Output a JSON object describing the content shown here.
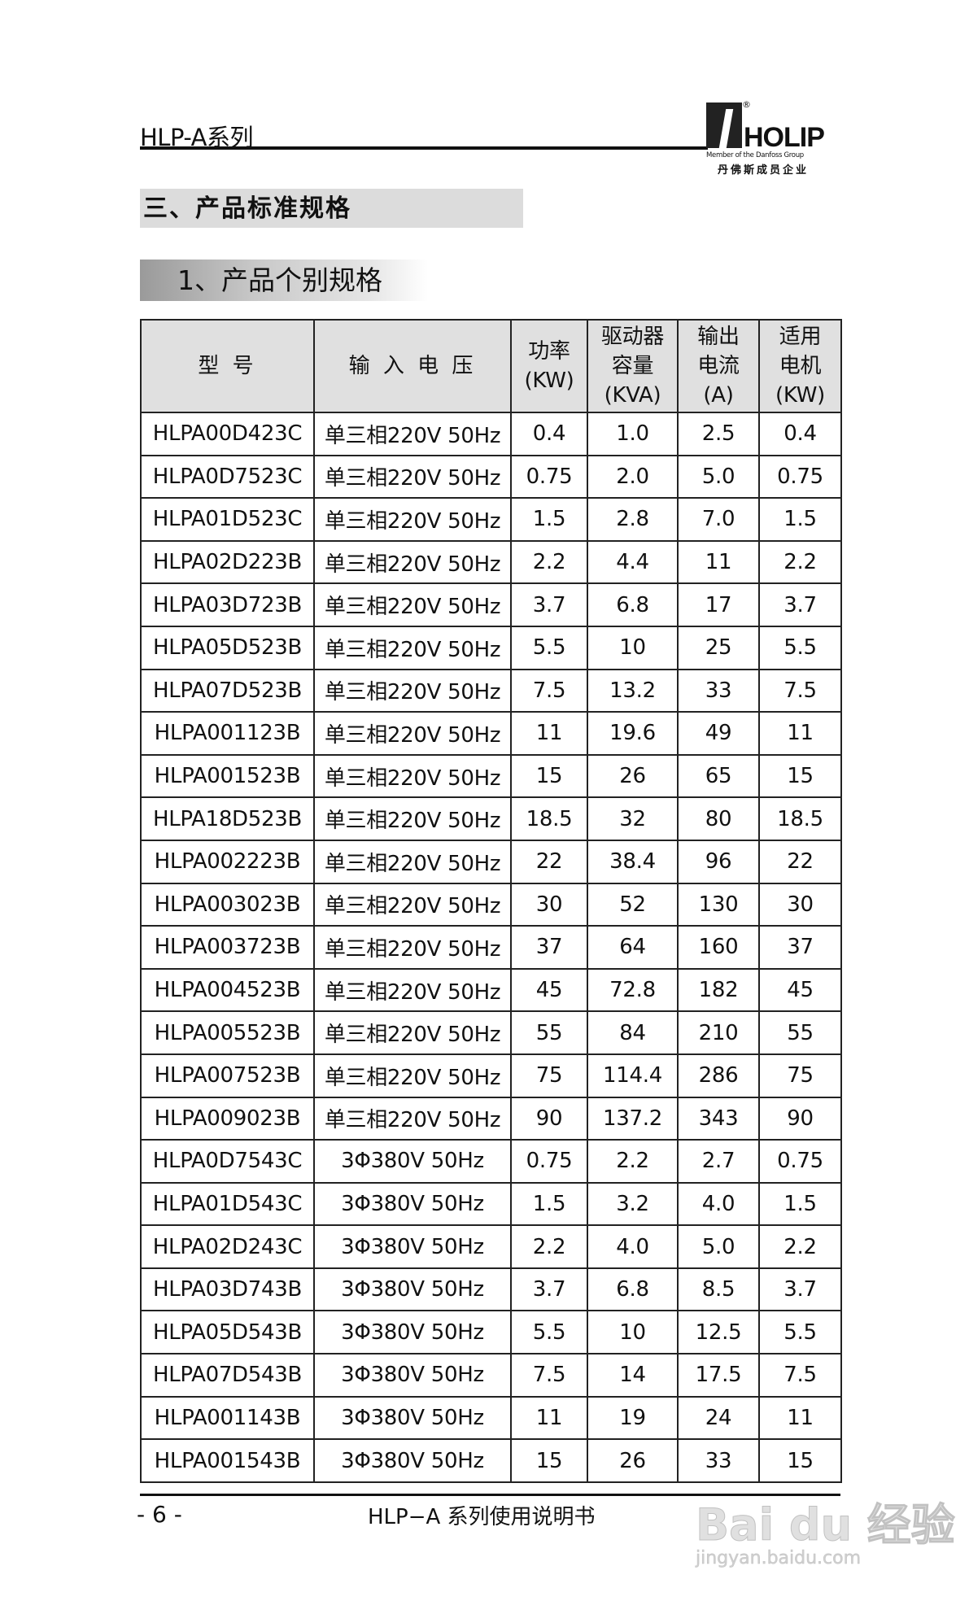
{
  "header": {
    "title": "HLP-A系列"
  },
  "logo": {
    "reg": "®",
    "name": "HOLIP",
    "member": "Member of the Danfoss Group",
    "cn": "丹佛斯成员企业"
  },
  "section": {
    "main": "三、产品标准规格",
    "sub": "1、产品个别规格"
  },
  "table": {
    "headers": [
      "型 号",
      "输 入 电 压",
      "功率\n(KW)",
      "驱动器\n容量\n(KVA)",
      "输出\n电流\n(A)",
      "适用\n电机\n(KW)"
    ],
    "rows": [
      [
        "HLPA00D423C",
        "单三相220V 50Hz",
        "0.4",
        "1.0",
        "2.5",
        "0.4"
      ],
      [
        "HLPA0D7523C",
        "单三相220V 50Hz",
        "0.75",
        "2.0",
        "5.0",
        "0.75"
      ],
      [
        "HLPA01D523C",
        "单三相220V 50Hz",
        "1.5",
        "2.8",
        "7.0",
        "1.5"
      ],
      [
        "HLPA02D223B",
        "单三相220V 50Hz",
        "2.2",
        "4.4",
        "11",
        "2.2"
      ],
      [
        "HLPA03D723B",
        "单三相220V 50Hz",
        "3.7",
        "6.8",
        "17",
        "3.7"
      ],
      [
        "HLPA05D523B",
        "单三相220V 50Hz",
        "5.5",
        "10",
        "25",
        "5.5"
      ],
      [
        "HLPA07D523B",
        "单三相220V 50Hz",
        "7.5",
        "13.2",
        "33",
        "7.5"
      ],
      [
        "HLPA001123B",
        "单三相220V 50Hz",
        "11",
        "19.6",
        "49",
        "11"
      ],
      [
        "HLPA001523B",
        "单三相220V 50Hz",
        "15",
        "26",
        "65",
        "15"
      ],
      [
        "HLPA18D523B",
        "单三相220V 50Hz",
        "18.5",
        "32",
        "80",
        "18.5"
      ],
      [
        "HLPA002223B",
        "单三相220V 50Hz",
        "22",
        "38.4",
        "96",
        "22"
      ],
      [
        "HLPA003023B",
        "单三相220V 50Hz",
        "30",
        "52",
        "130",
        "30"
      ],
      [
        "HLPA003723B",
        "单三相220V 50Hz",
        "37",
        "64",
        "160",
        "37"
      ],
      [
        "HLPA004523B",
        "单三相220V 50Hz",
        "45",
        "72.8",
        "182",
        "45"
      ],
      [
        "HLPA005523B",
        "单三相220V 50Hz",
        "55",
        "84",
        "210",
        "55"
      ],
      [
        "HLPA007523B",
        "单三相220V 50Hz",
        "75",
        "114.4",
        "286",
        "75"
      ],
      [
        "HLPA009023B",
        "单三相220V 50Hz",
        "90",
        "137.2",
        "343",
        "90"
      ],
      [
        "HLPA0D7543C",
        "3Φ380V 50Hz",
        "0.75",
        "2.2",
        "2.7",
        "0.75"
      ],
      [
        "HLPA01D543C",
        "3Φ380V 50Hz",
        "1.5",
        "3.2",
        "4.0",
        "1.5"
      ],
      [
        "HLPA02D243C",
        "3Φ380V 50Hz",
        "2.2",
        "4.0",
        "5.0",
        "2.2"
      ],
      [
        "HLPA03D743B",
        "3Φ380V 50Hz",
        "3.7",
        "6.8",
        "8.5",
        "3.7"
      ],
      [
        "HLPA05D543B",
        "3Φ380V 50Hz",
        "5.5",
        "10",
        "12.5",
        "5.5"
      ],
      [
        "HLPA07D543B",
        "3Φ380V 50Hz",
        "7.5",
        "14",
        "17.5",
        "7.5"
      ],
      [
        "HLPA001143B",
        "3Φ380V 50Hz",
        "11",
        "19",
        "24",
        "11"
      ],
      [
        "HLPA001543B",
        "3Φ380V 50Hz",
        "15",
        "26",
        "33",
        "15"
      ]
    ]
  },
  "footer": {
    "page": "- 6 -",
    "title": "HLP−A 系列使用说明书"
  },
  "watermark": {
    "brand": "Bai du 经验",
    "url": "jingyan.baidu.com"
  }
}
